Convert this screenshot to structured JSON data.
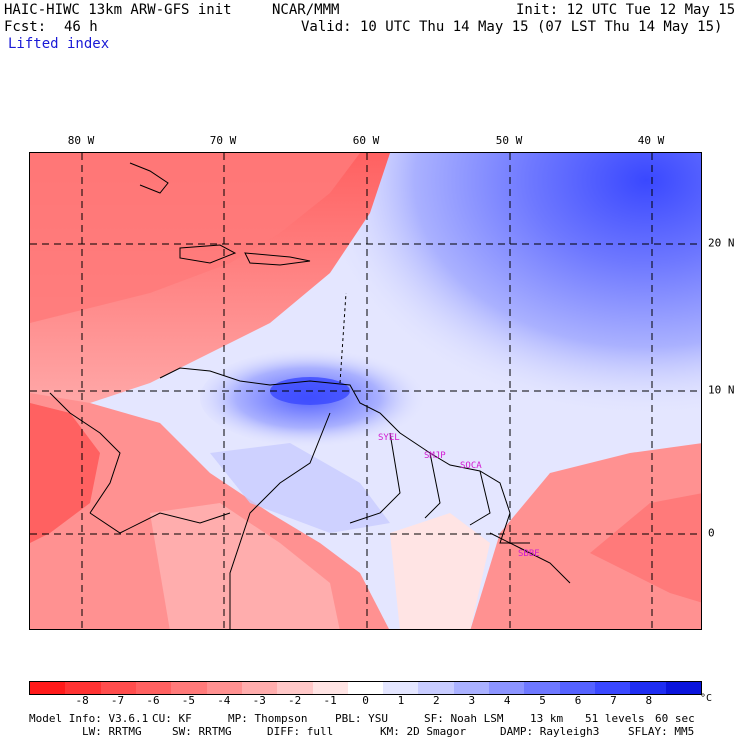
{
  "header": {
    "model": "HAIC-HIWC 13km ARW-GFS init",
    "institution": "NCAR/MMM",
    "init": "Init: 12 UTC Tue 12 May 15",
    "fcst_label": "Fcst:",
    "fcst_value": "46 h",
    "valid": "Valid: 10 UTC Thu 14 May 15 (07 LST Thu 14 May 15)",
    "field": "Lifted index"
  },
  "map": {
    "longitude_labels": [
      "80 W",
      "70 W",
      "60 W",
      "50 W",
      "40 W"
    ],
    "latitude_labels": [
      "20 N",
      "10 N",
      "0"
    ],
    "stations": [
      "SYEL",
      "SMJP",
      "SOCA",
      "SBBE"
    ]
  },
  "colorbar": {
    "labels": [
      "-8",
      "-7",
      "-6",
      "-5",
      "-4",
      "-3",
      "-2",
      "-1",
      "0",
      "1",
      "2",
      "3",
      "4",
      "5",
      "6",
      "7",
      "8"
    ],
    "unit": "°C",
    "colors": [
      "#ff1a1a",
      "#ff3333",
      "#ff4d4d",
      "#ff6161",
      "#ff7a7a",
      "#ff9191",
      "#ffadad",
      "#ffc8c8",
      "#ffe4e4",
      "#ffffff",
      "#e4e6ff",
      "#c8ccff",
      "#aab1ff",
      "#8c94ff",
      "#6e78ff",
      "#5562ff",
      "#3a48ff",
      "#1e2df2",
      "#0a14dc"
    ]
  },
  "footer": {
    "line1": [
      "Model Info: V3.6.1",
      "CU: KF",
      "MP: Thompson",
      "PBL: YSU",
      "SF: Noah LSM",
      "13 km",
      "51 levels",
      "60 sec"
    ],
    "line2": [
      "LW: RRTMG",
      "SW: RRTMG",
      "DIFF: full",
      "KM: 2D Smagor",
      "DAMP: Rayleigh3",
      "SFLAY: MM5"
    ]
  }
}
